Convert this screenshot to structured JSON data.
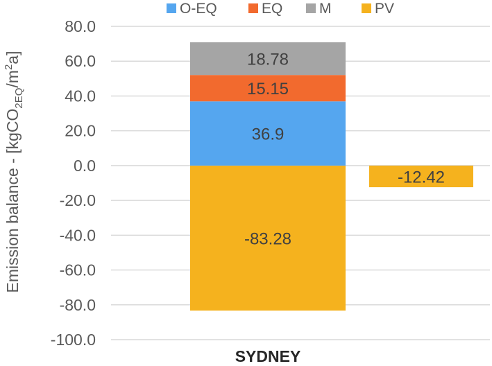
{
  "chart_data": {
    "type": "bar",
    "stacked": true,
    "ylabel": "Emission balance - [kgCO2EQ/m²a]",
    "ylabel_parts": {
      "main": "Emission balance - [kgCO",
      "sub": "2EQ",
      "tail": "/m",
      "sup": "2",
      "end": "a]"
    },
    "ylim": [
      -100,
      80
    ],
    "yticks": [
      "80.0",
      "60.0",
      "40.0",
      "20.0",
      "0.0",
      "-20.0",
      "-40.0",
      "-60.0",
      "-80.0",
      "-100.0"
    ],
    "ytick_values": [
      80,
      60,
      40,
      20,
      0,
      -20,
      -40,
      -60,
      -80,
      -100
    ],
    "categories": [
      "SYDNEY"
    ],
    "grid": true,
    "legend_position": "top",
    "stack": [
      {
        "name": "PV",
        "value": -83.28,
        "label": "-83.28",
        "color": "#F5B21E"
      },
      {
        "name": "O-EQ",
        "value": 36.9,
        "label": "36.9",
        "color": "#55A6EF"
      },
      {
        "name": "EQ",
        "value": 15.15,
        "label": "15.15",
        "color": "#F26A2E"
      },
      {
        "name": "M",
        "value": 18.78,
        "label": "18.78",
        "color": "#A5A5A5"
      }
    ],
    "net": {
      "value": -12.42,
      "label": "-12.42",
      "color": "#F5B21E"
    },
    "legend": [
      {
        "name": "O-EQ",
        "color": "#55A6EF"
      },
      {
        "name": "EQ",
        "color": "#F26A2E"
      },
      {
        "name": "M",
        "color": "#A5A5A5"
      },
      {
        "name": "PV",
        "color": "#F5B21E"
      }
    ]
  }
}
